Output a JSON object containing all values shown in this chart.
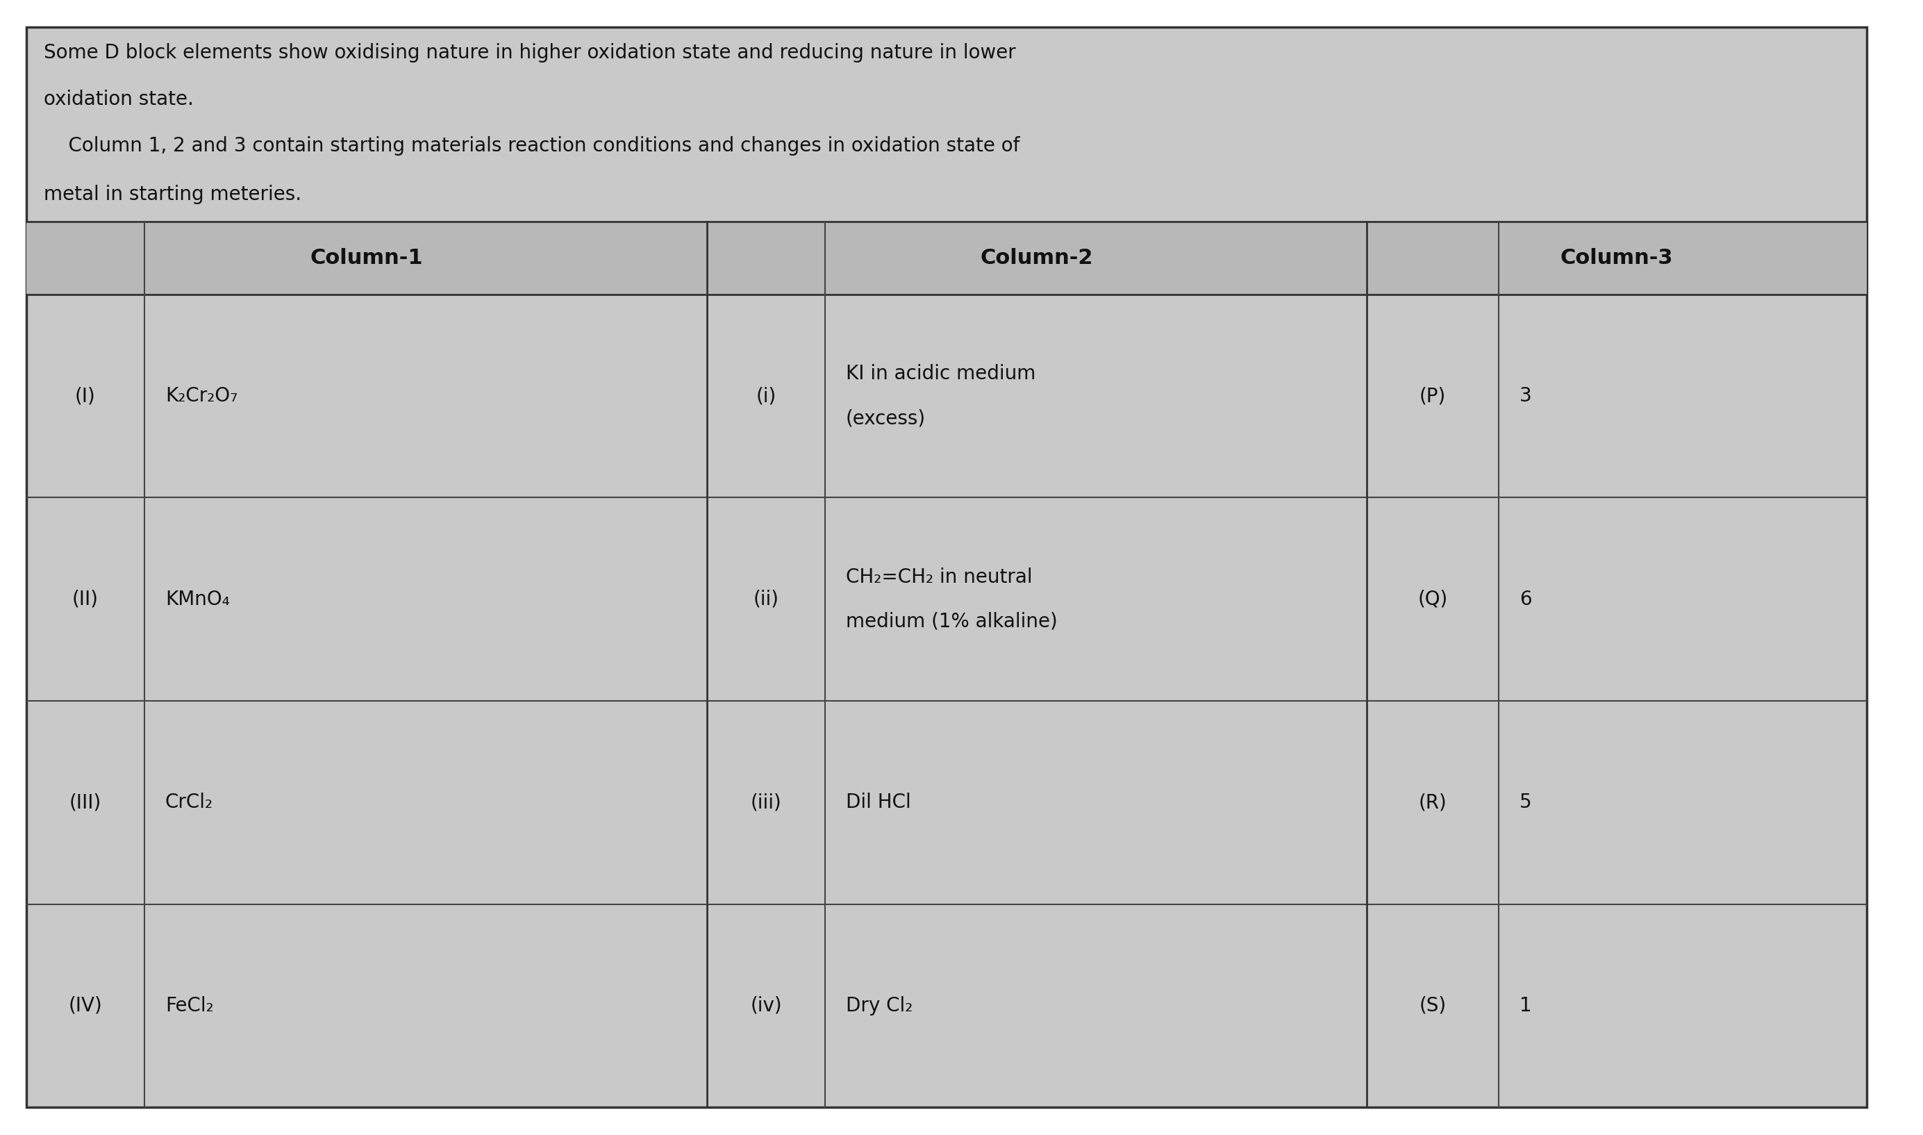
{
  "bg_color": "#c8c8c8",
  "box_bg": "#c8c8c8",
  "border_color": "#222222",
  "text_color": "#111111",
  "intro_line1": "Some D block elements show oxidising nature in higher oxidation state and reducing nature in lower",
  "intro_line2": "oxidation state.",
  "intro_line3": "    Column 1, 2 and 3 contain starting materials reaction conditions and changes in oxidation state of",
  "intro_line4": "metal in starting meteries.",
  "col1_header": "Column-1",
  "col2_header": "Column-2",
  "col3_header": "Column-3",
  "col1_rows": [
    {
      "label": "(I)",
      "content": "K₂Cr₂O₇"
    },
    {
      "label": "(II)",
      "content": "KMnO₄"
    },
    {
      "label": "(III)",
      "content": "CrCl₂"
    },
    {
      "label": "(IV)",
      "content": "FeCl₂"
    }
  ],
  "col2_rows": [
    {
      "label": "(i)",
      "line1": "KI in acidic medium",
      "line2": "(excess)"
    },
    {
      "label": "(ii)",
      "line1": "CH₂=CH₂ in neutral",
      "line2": "medium (1% alkaline)"
    },
    {
      "label": "(iii)",
      "line1": "Dil HCl",
      "line2": ""
    },
    {
      "label": "(iv)",
      "line1": "Dry Cl₂",
      "line2": ""
    }
  ],
  "col3_rows": [
    {
      "label": "(P)",
      "content": "3"
    },
    {
      "label": "(Q)",
      "content": "6"
    },
    {
      "label": "(R)",
      "content": "5"
    },
    {
      "label": "(S)",
      "content": "1"
    }
  ],
  "intro_fontsize": 20,
  "header_fontsize": 22,
  "cell_fontsize": 20
}
